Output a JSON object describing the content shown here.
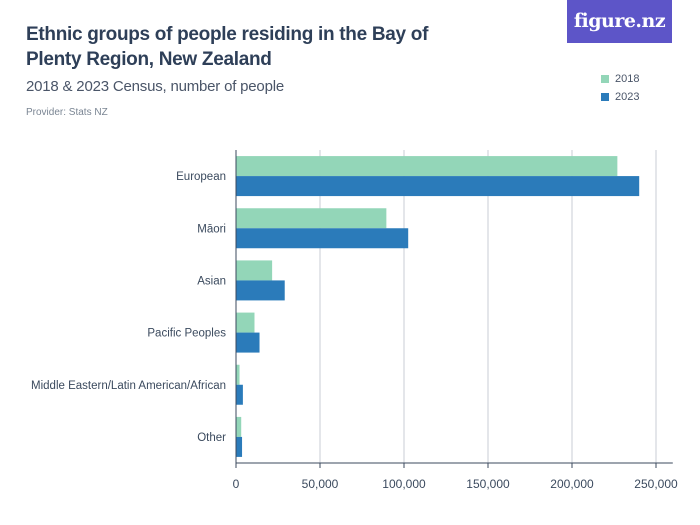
{
  "header": {
    "title": "Ethnic groups of people residing in the Bay of Plenty Region, New Zealand",
    "subtitle": "2018 & 2023 Census, number of people",
    "provider": "Provider: Stats NZ",
    "logo_text": "figure.nz"
  },
  "colors": {
    "series_2018": "#93d6b8",
    "series_2023": "#2b7bba",
    "axis": "#3b4a5e",
    "grid": "#c9ced6",
    "logo_bg": "#5d55c8"
  },
  "chart_data": {
    "type": "bar",
    "orientation": "horizontal",
    "categories": [
      "European",
      "Māori",
      "Asian",
      "Pacific Peoples",
      "Middle Eastern/Latin American/African",
      "Other"
    ],
    "series": [
      {
        "name": "2018",
        "values": [
          227000,
          89500,
          21500,
          11000,
          2100,
          3100
        ]
      },
      {
        "name": "2023",
        "values": [
          240000,
          102500,
          29000,
          14000,
          4100,
          3600
        ]
      }
    ],
    "xlim": [
      0,
      260000
    ],
    "xticks": [
      0,
      50000,
      100000,
      150000,
      200000,
      250000
    ],
    "xtick_labels": [
      "0",
      "50,000",
      "100,000",
      "150,000",
      "200,000",
      "250,000"
    ],
    "grid": true,
    "legend_position": "top-right"
  }
}
